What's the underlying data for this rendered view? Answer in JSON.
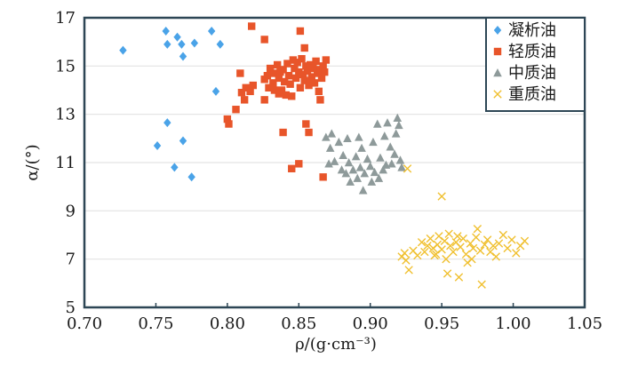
{
  "chart_data": {
    "type": "scatter",
    "xlabel": "ρ/(g·cm⁻³)",
    "ylabel": "α/(°)",
    "xlim": [
      0.7,
      1.05
    ],
    "ylim": [
      5,
      17
    ],
    "xticks": [
      "0.70",
      "0.75",
      "0.80",
      "0.85",
      "0.90",
      "0.95",
      "1.00",
      "1.05"
    ],
    "yticks": [
      "5",
      "7",
      "9",
      "11",
      "13",
      "15",
      "17"
    ],
    "grid": "horizontal",
    "legend_position": "top-right",
    "series": [
      {
        "name": "凝析油",
        "marker": "diamond",
        "color": "#4aa3e8",
        "points": [
          [
            0.727,
            15.65
          ],
          [
            0.757,
            16.45
          ],
          [
            0.758,
            15.9
          ],
          [
            0.765,
            16.2
          ],
          [
            0.768,
            15.9
          ],
          [
            0.769,
            15.4
          ],
          [
            0.777,
            15.95
          ],
          [
            0.789,
            16.45
          ],
          [
            0.795,
            15.9
          ],
          [
            0.792,
            13.95
          ],
          [
            0.758,
            12.65
          ],
          [
            0.751,
            11.7
          ],
          [
            0.769,
            11.9
          ],
          [
            0.763,
            10.8
          ],
          [
            0.775,
            10.4
          ]
        ]
      },
      {
        "name": "轻质油",
        "marker": "square",
        "color": "#e8552a",
        "points": [
          [
            0.817,
            16.65
          ],
          [
            0.826,
            16.1
          ],
          [
            0.851,
            16.45
          ],
          [
            0.854,
            15.75
          ],
          [
            0.809,
            14.7
          ],
          [
            0.813,
            14.1
          ],
          [
            0.816,
            13.95
          ],
          [
            0.818,
            14.2
          ],
          [
            0.81,
            13.9
          ],
          [
            0.806,
            13.2
          ],
          [
            0.812,
            13.6
          ],
          [
            0.8,
            12.8
          ],
          [
            0.801,
            12.6
          ],
          [
            0.828,
            14.6
          ],
          [
            0.83,
            14.9
          ],
          [
            0.832,
            14.3
          ],
          [
            0.833,
            14.7
          ],
          [
            0.835,
            15.05
          ],
          [
            0.836,
            14.5
          ],
          [
            0.838,
            14.0
          ],
          [
            0.839,
            14.85
          ],
          [
            0.84,
            14.35
          ],
          [
            0.841,
            13.8
          ],
          [
            0.842,
            15.1
          ],
          [
            0.843,
            14.6
          ],
          [
            0.844,
            14.25
          ],
          [
            0.846,
            15.25
          ],
          [
            0.847,
            14.9
          ],
          [
            0.848,
            14.5
          ],
          [
            0.849,
            15.15
          ],
          [
            0.85,
            14.75
          ],
          [
            0.851,
            14.1
          ],
          [
            0.852,
            15.3
          ],
          [
            0.853,
            14.65
          ],
          [
            0.854,
            14.4
          ],
          [
            0.855,
            15.0
          ],
          [
            0.856,
            14.8
          ],
          [
            0.857,
            14.2
          ],
          [
            0.858,
            15.05
          ],
          [
            0.859,
            14.55
          ],
          [
            0.86,
            14.9
          ],
          [
            0.861,
            14.3
          ],
          [
            0.862,
            15.2
          ],
          [
            0.863,
            14.7
          ],
          [
            0.864,
            13.95
          ],
          [
            0.865,
            14.85
          ],
          [
            0.866,
            14.5
          ],
          [
            0.867,
            15.0
          ],
          [
            0.868,
            14.75
          ],
          [
            0.869,
            15.25
          ],
          [
            0.836,
            13.85
          ],
          [
            0.829,
            14.1
          ],
          [
            0.826,
            14.45
          ],
          [
            0.826,
            13.6
          ],
          [
            0.833,
            14.0
          ],
          [
            0.837,
            14.75
          ],
          [
            0.845,
            13.75
          ],
          [
            0.858,
            14.35
          ],
          [
            0.855,
            12.6
          ],
          [
            0.857,
            12.25
          ],
          [
            0.839,
            12.25
          ],
          [
            0.845,
            10.75
          ],
          [
            0.85,
            10.95
          ],
          [
            0.867,
            10.4
          ],
          [
            0.865,
            13.6
          ]
        ]
      },
      {
        "name": "中质油",
        "marker": "triangle",
        "color": "#8e9a9a",
        "points": [
          [
            0.869,
            12.05
          ],
          [
            0.872,
            11.6
          ],
          [
            0.873,
            12.2
          ],
          [
            0.875,
            11.05
          ],
          [
            0.871,
            10.95
          ],
          [
            0.878,
            11.85
          ],
          [
            0.88,
            10.7
          ],
          [
            0.881,
            11.3
          ],
          [
            0.883,
            10.55
          ],
          [
            0.884,
            12.0
          ],
          [
            0.885,
            11.0
          ],
          [
            0.886,
            10.2
          ],
          [
            0.888,
            10.7
          ],
          [
            0.89,
            11.25
          ],
          [
            0.891,
            10.35
          ],
          [
            0.892,
            12.05
          ],
          [
            0.893,
            10.8
          ],
          [
            0.894,
            11.6
          ],
          [
            0.895,
            9.85
          ],
          [
            0.896,
            10.55
          ],
          [
            0.898,
            11.15
          ],
          [
            0.9,
            10.85
          ],
          [
            0.901,
            10.2
          ],
          [
            0.902,
            11.85
          ],
          [
            0.903,
            10.6
          ],
          [
            0.905,
            12.6
          ],
          [
            0.906,
            10.35
          ],
          [
            0.907,
            11.2
          ],
          [
            0.909,
            10.7
          ],
          [
            0.91,
            12.1
          ],
          [
            0.911,
            10.9
          ],
          [
            0.912,
            12.65
          ],
          [
            0.914,
            11.65
          ],
          [
            0.915,
            10.95
          ],
          [
            0.917,
            11.35
          ],
          [
            0.919,
            12.85
          ],
          [
            0.92,
            12.55
          ],
          [
            0.921,
            11.1
          ],
          [
            0.922,
            10.8
          ],
          [
            0.918,
            12.2
          ]
        ]
      },
      {
        "name": "重质油",
        "marker": "x",
        "color": "#f0c030",
        "points": [
          [
            0.95,
            9.6
          ],
          [
            0.926,
            10.75
          ],
          [
            0.922,
            7.1
          ],
          [
            0.924,
            7.25
          ],
          [
            0.925,
            6.95
          ],
          [
            0.927,
            6.55
          ],
          [
            0.93,
            7.35
          ],
          [
            0.933,
            7.15
          ],
          [
            0.936,
            7.7
          ],
          [
            0.938,
            7.3
          ],
          [
            0.94,
            7.55
          ],
          [
            0.942,
            7.85
          ],
          [
            0.944,
            7.45
          ],
          [
            0.945,
            7.15
          ],
          [
            0.947,
            7.6
          ],
          [
            0.948,
            7.95
          ],
          [
            0.95,
            7.4
          ],
          [
            0.952,
            7.75
          ],
          [
            0.954,
            6.4
          ],
          [
            0.955,
            8.05
          ],
          [
            0.956,
            7.55
          ],
          [
            0.958,
            7.3
          ],
          [
            0.96,
            7.7
          ],
          [
            0.962,
            6.25
          ],
          [
            0.963,
            7.5
          ],
          [
            0.965,
            7.85
          ],
          [
            0.967,
            7.2
          ],
          [
            0.968,
            6.85
          ],
          [
            0.97,
            7.65
          ],
          [
            0.972,
            7.45
          ],
          [
            0.974,
            7.9
          ],
          [
            0.975,
            8.25
          ],
          [
            0.977,
            7.35
          ],
          [
            0.978,
            5.95
          ],
          [
            0.98,
            7.6
          ],
          [
            0.982,
            7.8
          ],
          [
            0.984,
            7.3
          ],
          [
            0.986,
            7.55
          ],
          [
            0.988,
            7.1
          ],
          [
            0.99,
            7.65
          ],
          [
            0.993,
            8.0
          ],
          [
            0.996,
            7.45
          ],
          [
            0.999,
            7.8
          ],
          [
            1.002,
            7.25
          ],
          [
            1.005,
            7.55
          ],
          [
            1.008,
            7.75
          ],
          [
            0.946,
            7.2
          ],
          [
            0.953,
            7.0
          ],
          [
            0.961,
            7.95
          ],
          [
            0.971,
            7.0
          ]
        ]
      }
    ]
  }
}
